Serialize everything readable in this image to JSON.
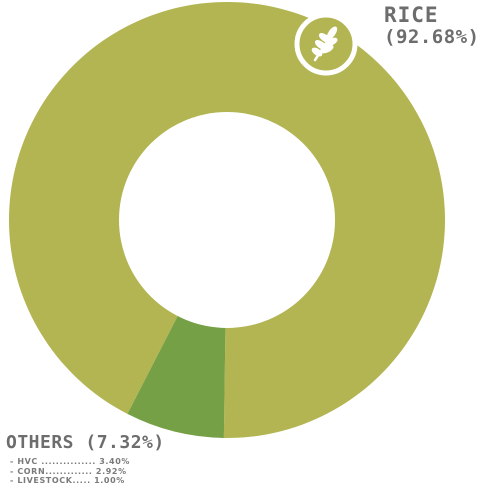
{
  "chart_data": {
    "type": "pie",
    "title": "",
    "slices": [
      {
        "label": "RICE",
        "value": 92.68,
        "value_label": "(92.68%)",
        "color": "#b2b552"
      },
      {
        "label": "OTHERS",
        "value": 7.32,
        "value_label": "(7.32%)",
        "color": "#76a045"
      }
    ],
    "others_breakdown": [
      {
        "text": "HVC ............... 3.40%"
      },
      {
        "text": "CORN............. 2.92%"
      },
      {
        "text": "LIVESTOCK..... 1.00%"
      }
    ]
  },
  "icon": "wheat-icon"
}
